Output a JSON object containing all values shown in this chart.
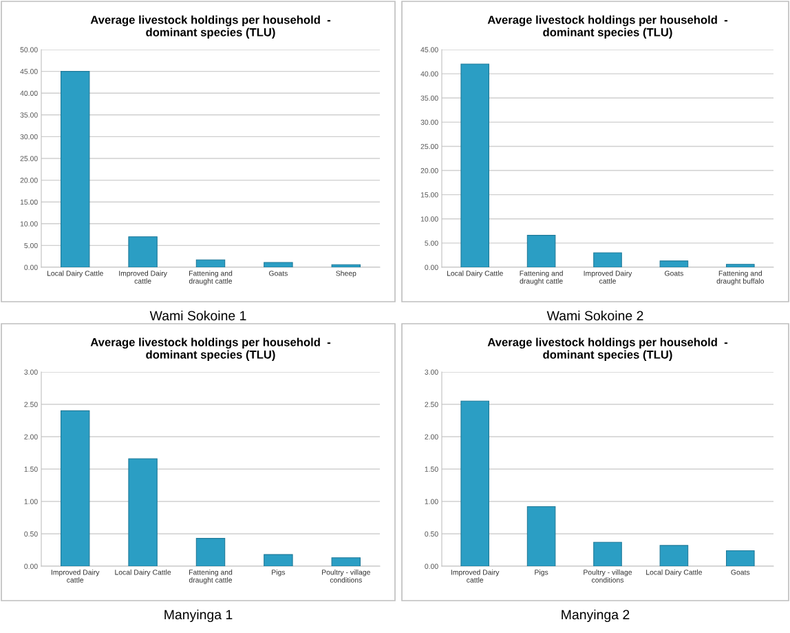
{
  "chart_data": [
    {
      "type": "bar",
      "title": "Average livestock holdings per household  -\ndominant species (TLU)",
      "categories": [
        "Local Dairy Cattle",
        "Improved Dairy\ncattle",
        "Fattening and\ndraught cattle",
        "Goats",
        "Sheep"
      ],
      "values": [
        45.0,
        7.0,
        1.7,
        1.1,
        0.6
      ],
      "color": "#2b9ec4",
      "ylim": [
        0,
        50
      ],
      "yticks": [
        {
          "value": 0,
          "label": "0.00"
        },
        {
          "value": 5,
          "label": "5.00"
        },
        {
          "value": 10,
          "label": "10.00"
        },
        {
          "value": 15,
          "label": "15.00"
        },
        {
          "value": 20,
          "label": "20.00"
        },
        {
          "value": 25,
          "label": "25.00"
        },
        {
          "value": 30,
          "label": "30.00"
        },
        {
          "value": 35,
          "label": "35.00"
        },
        {
          "value": 40,
          "label": "40.00"
        },
        {
          "value": 45,
          "label": "45.00"
        },
        {
          "value": 50,
          "label": "50.00"
        }
      ],
      "grid": "y",
      "annotations": [
        "Wami Sokoine 1"
      ]
    },
    {
      "type": "bar",
      "title": "Average livestock holdings per household  -\ndominant species (TLU)",
      "categories": [
        "Local Dairy Cattle",
        "Fattening and\ndraught cattle",
        "Improved Dairy\ncattle",
        "Goats",
        "Fattening and\ndraught buffalo"
      ],
      "values": [
        42.0,
        6.6,
        3.0,
        1.3,
        0.6
      ],
      "color": "#2b9ec4",
      "ylim": [
        0,
        45
      ],
      "yticks": [
        {
          "value": 0,
          "label": "0.00"
        },
        {
          "value": 5,
          "label": "5.00"
        },
        {
          "value": 10,
          "label": "10.00"
        },
        {
          "value": 15,
          "label": "15.00"
        },
        {
          "value": 20,
          "label": "20.00"
        },
        {
          "value": 25,
          "label": "25.00"
        },
        {
          "value": 30,
          "label": "30.00"
        },
        {
          "value": 35,
          "label": "35.00"
        },
        {
          "value": 40,
          "label": "40.00"
        },
        {
          "value": 45,
          "label": "45.00"
        }
      ],
      "grid": "y",
      "annotations": [
        "Wami Sokoine 2"
      ]
    },
    {
      "type": "bar",
      "title": "Average livestock holdings per household  -\ndominant species (TLU)",
      "categories": [
        "Improved Dairy\ncattle",
        "Local Dairy Cattle",
        "Fattening and\ndraught cattle",
        "Pigs",
        "Poultry - village\nconditions"
      ],
      "values": [
        2.4,
        1.66,
        0.43,
        0.18,
        0.13
      ],
      "color": "#2b9ec4",
      "ylim": [
        0,
        3
      ],
      "yticks": [
        {
          "value": 0,
          "label": "0.00"
        },
        {
          "value": 0.5,
          "label": "0.50"
        },
        {
          "value": 1,
          "label": "1.00"
        },
        {
          "value": 1.5,
          "label": "1.50"
        },
        {
          "value": 2,
          "label": "2.00"
        },
        {
          "value": 2.5,
          "label": "2.50"
        },
        {
          "value": 3,
          "label": "3.00"
        }
      ],
      "grid": "y",
      "annotations": [
        "Manyinga 1"
      ]
    },
    {
      "type": "bar",
      "title": "Average livestock holdings per household  -\ndominant species (TLU)",
      "categories": [
        "Improved Dairy\ncattle",
        "Pigs",
        "Poultry - village\nconditions",
        "Local Dairy Cattle",
        "Goats"
      ],
      "values": [
        2.55,
        0.92,
        0.37,
        0.32,
        0.24
      ],
      "color": "#2b9ec4",
      "ylim": [
        0,
        3
      ],
      "yticks": [
        {
          "value": 0,
          "label": "0.00"
        },
        {
          "value": 0.5,
          "label": "0.50"
        },
        {
          "value": 1,
          "label": "1.00"
        },
        {
          "value": 1.5,
          "label": "1.50"
        },
        {
          "value": 2,
          "label": "2.00"
        },
        {
          "value": 2.5,
          "label": "2.50"
        },
        {
          "value": 3,
          "label": "3.00"
        }
      ],
      "grid": "y",
      "annotations": [
        "Manyinga 2"
      ]
    }
  ]
}
